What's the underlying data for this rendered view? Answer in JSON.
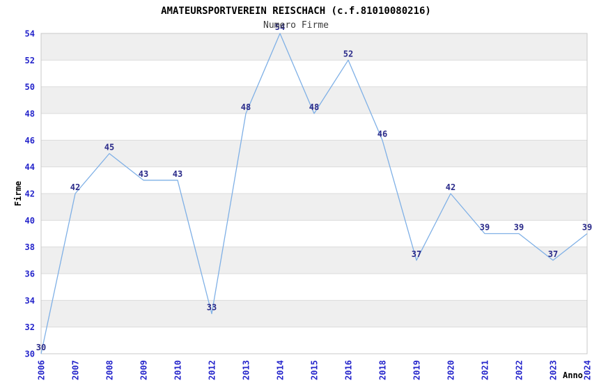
{
  "chart_data": {
    "type": "line",
    "title": "AMATEURSPORTVEREIN REISCHACH (c.f.81010080216)",
    "subtitle": "Numero Firme",
    "xlabel": "Anno",
    "ylabel": "Firme",
    "categories": [
      "2006",
      "2007",
      "2008",
      "2009",
      "2010",
      "2012",
      "2013",
      "2014",
      "2015",
      "2016",
      "2018",
      "2019",
      "2020",
      "2021",
      "2022",
      "2023",
      "2024"
    ],
    "series": [
      {
        "name": "Numero Firme",
        "values": [
          30,
          42,
          45,
          43,
          43,
          33,
          48,
          54,
          48,
          52,
          46,
          37,
          42,
          39,
          39,
          37,
          39
        ]
      }
    ],
    "ylim": [
      30,
      54
    ],
    "ytick_step": 2,
    "grid": "alternating horizontal gray bands every 2 units, light gridlines at even values",
    "legend_position": "none",
    "data_labels": "shown above each point",
    "colors": {
      "line": "#7FB0E6",
      "tick_label": "#2525CB",
      "data_label": "#2B2B8A",
      "band": "#EFEFEF",
      "gridline": "#DBDBDB",
      "plot_border": "#C9C9C9",
      "title": "#000000",
      "subtitle": "#3C3C3C",
      "axis_title": "#000000",
      "background": "#FFFFFF"
    }
  }
}
